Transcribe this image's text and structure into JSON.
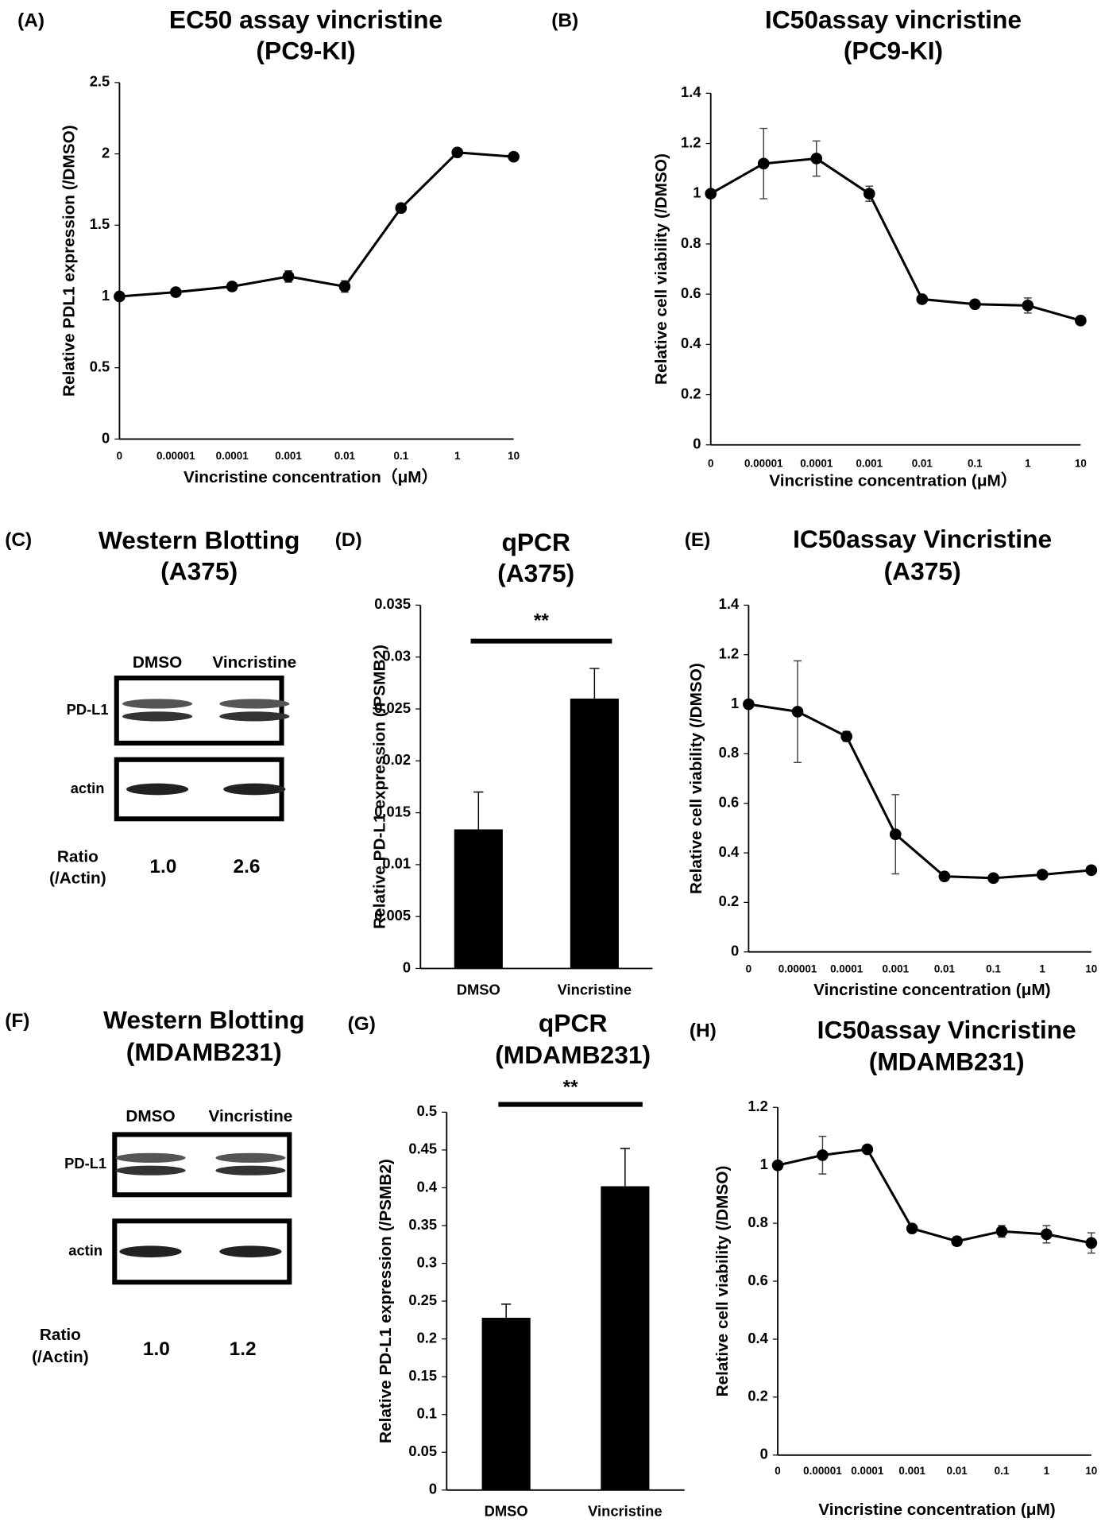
{
  "chart_data": [
    {
      "type": "line",
      "panel": "(A)",
      "title": [
        "EC50 assay vincristine",
        "(PC9-KI)"
      ],
      "categories": [
        "0",
        "0.00001",
        "0.0001",
        "0.001",
        "0.01",
        "0.1",
        "1",
        "10"
      ],
      "values": [
        1.0,
        1.03,
        1.07,
        1.14,
        1.07,
        1.62,
        2.01,
        1.98
      ],
      "errors": [
        0,
        0,
        0,
        0.04,
        0.04,
        0,
        0,
        0
      ],
      "ylim": [
        0,
        2.5
      ],
      "yticks": [
        0,
        0.5,
        1,
        1.5,
        2,
        2.5
      ],
      "x_label": "Vincristine concentration（μM）",
      "y_label": "Relative PDL1 expression (/DMSO)",
      "color": "#000000"
    },
    {
      "type": "line",
      "panel": "(B)",
      "title": [
        "IC50assay vincristine",
        "(PC9-KI)"
      ],
      "categories": [
        "0",
        "0.00001",
        "0.0001",
        "0.001",
        "0.01",
        "0.1",
        "1",
        "10"
      ],
      "values": [
        1.0,
        1.12,
        1.14,
        1.0,
        0.58,
        0.56,
        0.555,
        0.495
      ],
      "errors": [
        0,
        0.14,
        0.07,
        0.03,
        0,
        0,
        0.03,
        0
      ],
      "ylim": [
        0,
        1.4
      ],
      "yticks": [
        0,
        0.2,
        0.4,
        0.6,
        0.8,
        1,
        1.2,
        1.4
      ],
      "x_label": "Vincristine concentration (μM）",
      "y_label": "Relative cell viability (/DMSO)",
      "color": "#000000"
    },
    {
      "type": "blot",
      "panel": "(C)",
      "title": [
        "Western Blotting",
        "(A375)"
      ],
      "categories": [
        "DMSO",
        "Vincristine"
      ],
      "rows": [
        "PD-L1",
        "actin"
      ],
      "ratio_label": [
        "Ratio",
        "(/Actin)"
      ],
      "values": [
        1.0,
        2.6
      ],
      "value_labels": [
        "1.0",
        "2.6"
      ]
    },
    {
      "type": "bar",
      "panel": "(D)",
      "title": [
        "qPCR",
        "(A375)"
      ],
      "categories": [
        "DMSO",
        "Vincristine"
      ],
      "values": [
        0.0134,
        0.026
      ],
      "errors": [
        0.0036,
        0.0029
      ],
      "ylim": [
        0,
        0.035
      ],
      "yticks": [
        0,
        0.005,
        0.01,
        0.015,
        0.02,
        0.025,
        0.03,
        0.035
      ],
      "y_label": "Relative PD-L1 expression (/PSMB2)",
      "annotation": "**",
      "color": "#000000"
    },
    {
      "type": "line",
      "panel": "(E)",
      "title": [
        "IC50assay Vincristine",
        "(A375)"
      ],
      "categories": [
        "0",
        "0.00001",
        "0.0001",
        "0.001",
        "0.01",
        "0.1",
        "1",
        "10"
      ],
      "values": [
        1.0,
        0.97,
        0.87,
        0.475,
        0.305,
        0.298,
        0.312,
        0.33
      ],
      "errors": [
        0,
        0.205,
        0.02,
        0.16,
        0,
        0,
        0,
        0
      ],
      "ylim": [
        0,
        1.4
      ],
      "yticks": [
        0,
        0.2,
        0.4,
        0.6,
        0.8,
        1,
        1.2,
        1.4
      ],
      "x_label": "Vincristine concentration (μM)",
      "y_label": "Relative cell viability (/DMSO)",
      "color": "#000000"
    },
    {
      "type": "blot",
      "panel": "(F)",
      "title": [
        "Western Blotting",
        "(MDAMB231)"
      ],
      "categories": [
        "DMSO",
        "Vincristine"
      ],
      "rows": [
        "PD-L1",
        "actin"
      ],
      "ratio_label": [
        "Ratio",
        "(/Actin)"
      ],
      "values": [
        1.0,
        1.2
      ],
      "value_labels": [
        "1.0",
        "1.2"
      ]
    },
    {
      "type": "bar",
      "panel": "(G)",
      "title": [
        "qPCR",
        "(MDAMB231)"
      ],
      "categories": [
        "DMSO",
        "Vincristine"
      ],
      "values": [
        0.228,
        0.402
      ],
      "errors": [
        0.018,
        0.05
      ],
      "ylim": [
        0,
        0.5
      ],
      "yticks": [
        0,
        0.05,
        0.1,
        0.15,
        0.2,
        0.25,
        0.3,
        0.35,
        0.4,
        0.45,
        0.5
      ],
      "y_label": "Relative PD-L1 expression (/PSMB2)",
      "annotation": "**",
      "color": "#000000"
    },
    {
      "type": "line",
      "panel": "(H)",
      "title": [
        "IC50assay Vincristine",
        "(MDAMB231)"
      ],
      "categories": [
        "0",
        "0.00001",
        "0.0001",
        "0.001",
        "0.01",
        "0.1",
        "1",
        "10"
      ],
      "values": [
        1.0,
        1.035,
        1.055,
        0.782,
        0.738,
        0.772,
        0.762,
        0.732
      ],
      "errors": [
        0,
        0.065,
        0,
        0,
        0.015,
        0.02,
        0.03,
        0.035
      ],
      "ylim": [
        0,
        1.2
      ],
      "yticks": [
        0,
        0.2,
        0.4,
        0.6,
        0.8,
        1,
        1.2
      ],
      "x_label": "Vincristine concentration (μM)",
      "y_label": "Relative cell viability (/DMSO)",
      "color": "#000000"
    }
  ]
}
